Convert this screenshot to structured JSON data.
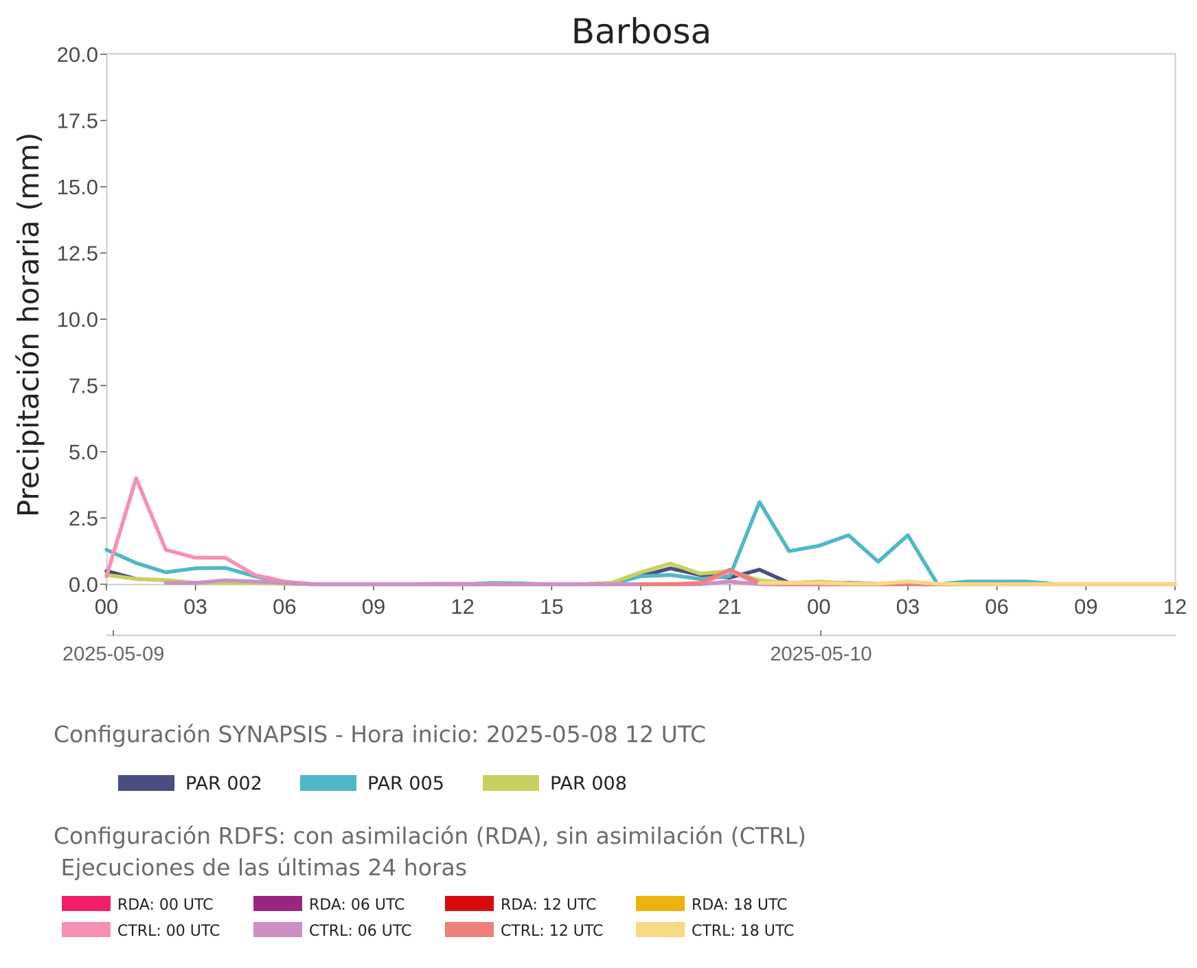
{
  "chart_data": {
    "type": "line",
    "title": "Barbosa",
    "ylabel": "Precipitación horaria (mm)",
    "xlabel": "",
    "ylim": [
      0,
      20
    ],
    "y_ticks": [
      "0.0",
      "2.5",
      "5.0",
      "7.5",
      "10.0",
      "12.5",
      "15.0",
      "17.5",
      "20.0"
    ],
    "x_range": [
      "2025-05-09 00:00",
      "2025-05-10 12:00"
    ],
    "x_tick_labels": [
      "00",
      "03",
      "06",
      "09",
      "12",
      "15",
      "18",
      "21",
      "00",
      "03",
      "06",
      "09",
      "12"
    ],
    "date_labels": [
      {
        "date": "2025-05-09",
        "hour": 0
      },
      {
        "date": "2025-05-10",
        "hour": 24
      }
    ],
    "grid": false,
    "hours": [
      0,
      1,
      2,
      3,
      4,
      5,
      6,
      7,
      8,
      9,
      10,
      11,
      12,
      13,
      14,
      15,
      16,
      17,
      18,
      19,
      20,
      21,
      22,
      23,
      24,
      25,
      26,
      27,
      28,
      29,
      30,
      31,
      32,
      33,
      34,
      35,
      36
    ],
    "series": [
      {
        "name": "PAR 002",
        "color": "#4b4e80",
        "values": [
          0.5,
          0.2,
          0.15,
          0.05,
          0.1,
          0.05,
          0.02,
          0,
          0,
          0,
          0,
          0,
          0,
          0,
          0,
          0,
          0,
          0.05,
          0.3,
          0.6,
          0.35,
          0.25,
          0.55,
          0.05,
          0.05,
          0.05,
          0.02,
          0,
          0,
          0,
          0,
          0,
          0,
          0,
          0,
          0,
          0
        ]
      },
      {
        "name": "PAR 005",
        "color": "#4fb8c6",
        "values": [
          1.3,
          0.8,
          0.45,
          0.6,
          0.62,
          0.3,
          0.05,
          0,
          0,
          0,
          0,
          0,
          0,
          0.05,
          0.03,
          0,
          0,
          0,
          0.3,
          0.35,
          0.2,
          0.3,
          3.1,
          1.25,
          1.45,
          1.85,
          0.85,
          1.85,
          0,
          0.1,
          0.1,
          0.1,
          0,
          0,
          0,
          0,
          0
        ]
      },
      {
        "name": "PAR 008",
        "color": "#c8d05f",
        "values": [
          0.35,
          0.2,
          0.15,
          0.05,
          0.05,
          0.05,
          0.02,
          0,
          0,
          0,
          0,
          0,
          0,
          0,
          0,
          0,
          0,
          0.05,
          0.45,
          0.78,
          0.4,
          0.5,
          0.15,
          0.05,
          0.1,
          0.03,
          0.02,
          0.05,
          0,
          0,
          0,
          0,
          0,
          0,
          0,
          0,
          0
        ]
      },
      {
        "name": "CTRL: 00 UTC",
        "color": "#f78fb3",
        "values": [
          0.3,
          4.0,
          1.3,
          1.0,
          1.0,
          0.35,
          0.1,
          0,
          0,
          0,
          0,
          0.02,
          0.02,
          0,
          0,
          0,
          0,
          0,
          0,
          0,
          0,
          0.5,
          0,
          0,
          0,
          0,
          0,
          0,
          0,
          0,
          0,
          0,
          0,
          0,
          0,
          0,
          0
        ]
      },
      {
        "name": "CTRL: 06 UTC",
        "color": "#cc90c4",
        "values": [
          null,
          null,
          0.05,
          0.05,
          0.15,
          0.1,
          0.05,
          0,
          0,
          0,
          0,
          0,
          0,
          0,
          0,
          0,
          0,
          0,
          0,
          0,
          0,
          0.1,
          0,
          0,
          0,
          0,
          0,
          0,
          0,
          0,
          0,
          0,
          0,
          0,
          0,
          0,
          0
        ]
      },
      {
        "name": "CTRL: 12 UTC",
        "color": "#ec807a",
        "values": [
          null,
          null,
          null,
          null,
          null,
          null,
          null,
          null,
          null,
          null,
          null,
          null,
          null,
          null,
          null,
          null,
          null,
          null,
          0,
          0,
          0.05,
          0.55,
          0.05,
          0,
          0,
          0,
          0,
          0,
          0,
          0,
          0,
          0,
          0,
          0,
          0,
          0,
          0
        ]
      },
      {
        "name": "CTRL: 18 UTC",
        "color": "#f7d986",
        "values": [
          null,
          null,
          null,
          null,
          null,
          null,
          null,
          null,
          null,
          null,
          null,
          null,
          null,
          null,
          null,
          null,
          null,
          null,
          null,
          null,
          null,
          null,
          0.05,
          0.05,
          0.05,
          0.02,
          0.02,
          0.1,
          0.02,
          0,
          0,
          0,
          0,
          0,
          0,
          0,
          0
        ]
      }
    ]
  },
  "legends": {
    "synapsis": {
      "heading": "Configuración SYNAPSIS - Hora inicio: 2025-05-08 12 UTC",
      "items": [
        {
          "label": "PAR 002",
          "color": "#4b4e80"
        },
        {
          "label": "PAR 005",
          "color": "#4fb8c6"
        },
        {
          "label": "PAR 008",
          "color": "#c8d05f"
        }
      ]
    },
    "rdfs": {
      "heading_line1": "Configuración RDFS: con asimilación (RDA), sin asimilación (CTRL)",
      "heading_line2": " Ejecuciones de las últimas 24 horas",
      "items": [
        {
          "label": "RDA: 00 UTC",
          "color": "#f11e6b"
        },
        {
          "label": "RDA: 06 UTC",
          "color": "#9a2682"
        },
        {
          "label": "RDA: 12 UTC",
          "color": "#d80b0b"
        },
        {
          "label": "RDA: 18 UTC",
          "color": "#eeb20c"
        },
        {
          "label": "CTRL: 00 UTC",
          "color": "#f78fb3"
        },
        {
          "label": "CTRL: 06 UTC",
          "color": "#cc90c4"
        },
        {
          "label": "CTRL: 12 UTC",
          "color": "#ec807a"
        },
        {
          "label": "CTRL: 18 UTC",
          "color": "#f7d986"
        }
      ]
    }
  }
}
